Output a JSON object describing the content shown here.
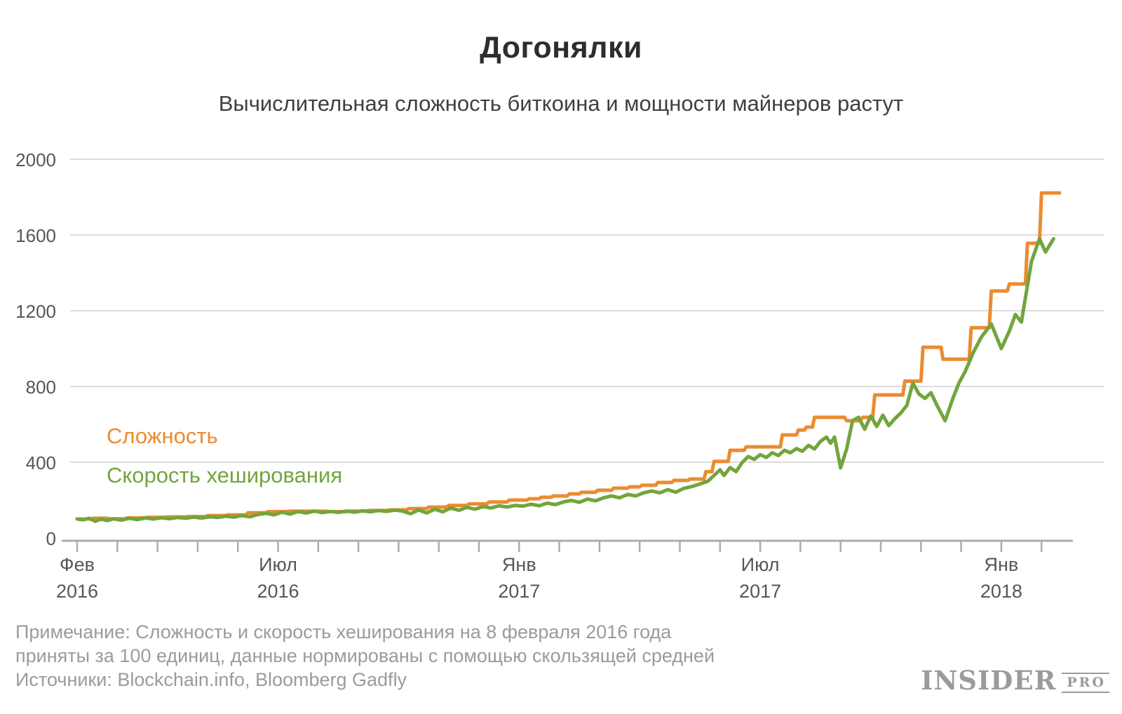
{
  "title": "Догонялки",
  "subtitle": "Вычислительная сложность биткоина и мощности майнеров растут",
  "legend": {
    "difficulty": "Сложность",
    "hashrate": "Скорость хеширования"
  },
  "colors": {
    "difficulty": "#EC8B2F",
    "hashrate": "#72A53D",
    "grid": "#dcdcdc",
    "axis_line": "#acacaf",
    "tick_label": "#54575a",
    "footnote": "#9b9b9b",
    "logo": "#9b9b9b"
  },
  "footnote": {
    "line1": "Примечание: Сложность и скорость хеширования на 8 февраля 2016 года",
    "line2": "приняты за 100 единиц, данные нормированы с помощью скользящей средней",
    "line3": "Источники: Blockchain.info, Bloomberg Gadfly"
  },
  "logo": {
    "main": "INSIDER",
    "sub": "PRO"
  },
  "chart_data": {
    "type": "line",
    "title": "Догонялки",
    "subtitle": "Вычислительная сложность биткоина и мощности майнеров растут",
    "x_unit": "months since Feb 2016",
    "xlim": [
      0,
      24.5
    ],
    "ylim": [
      0,
      2000
    ],
    "grid": "horizontal",
    "y_ticks": [
      0,
      400,
      800,
      1200,
      1600,
      2000
    ],
    "x_minor_tick_months": [
      0,
      1,
      2,
      3,
      4,
      5,
      6,
      7,
      8,
      9,
      10,
      11,
      12,
      13,
      14,
      15,
      16,
      17,
      18,
      19,
      20,
      21,
      22,
      23,
      24
    ],
    "x_labels": [
      {
        "month": "Фев",
        "year": "2016",
        "m": 0
      },
      {
        "month": "Июл",
        "year": "2016",
        "m": 5
      },
      {
        "month": "Янв",
        "year": "2017",
        "m": 11
      },
      {
        "month": "Июл",
        "year": "2017",
        "m": 17
      },
      {
        "month": "Янв",
        "year": "2018",
        "m": 23
      }
    ],
    "legend_position": "inside-left",
    "series": [
      {
        "name": "Сложность",
        "color": "#EC8B2F",
        "style": "step",
        "points": [
          [
            0,
            100
          ],
          [
            0.35,
            100
          ],
          [
            0.4,
            104
          ],
          [
            0.75,
            104
          ],
          [
            0.8,
            101
          ],
          [
            1.2,
            101
          ],
          [
            1.25,
            106
          ],
          [
            1.7,
            106
          ],
          [
            1.75,
            109
          ],
          [
            2.2,
            109
          ],
          [
            2.25,
            111
          ],
          [
            2.7,
            111
          ],
          [
            2.75,
            113
          ],
          [
            3.2,
            113
          ],
          [
            3.25,
            118
          ],
          [
            3.7,
            118
          ],
          [
            3.75,
            122
          ],
          [
            4.2,
            122
          ],
          [
            4.25,
            133
          ],
          [
            4.7,
            133
          ],
          [
            4.75,
            139
          ],
          [
            5.2,
            139
          ],
          [
            5.25,
            141
          ],
          [
            6.2,
            141
          ],
          [
            6.25,
            139
          ],
          [
            6.7,
            139
          ],
          [
            6.75,
            142
          ],
          [
            7.2,
            142
          ],
          [
            7.25,
            145
          ],
          [
            7.7,
            145
          ],
          [
            7.75,
            148
          ],
          [
            8.2,
            148
          ],
          [
            8.25,
            155
          ],
          [
            8.7,
            155
          ],
          [
            8.75,
            163
          ],
          [
            9.2,
            163
          ],
          [
            9.25,
            172
          ],
          [
            9.7,
            172
          ],
          [
            9.75,
            180
          ],
          [
            10.2,
            180
          ],
          [
            10.25,
            190
          ],
          [
            10.7,
            190
          ],
          [
            10.75,
            200
          ],
          [
            11.2,
            200
          ],
          [
            11.25,
            207
          ],
          [
            11.5,
            207
          ],
          [
            11.55,
            215
          ],
          [
            11.8,
            215
          ],
          [
            11.85,
            222
          ],
          [
            12.2,
            222
          ],
          [
            12.25,
            233
          ],
          [
            12.5,
            233
          ],
          [
            12.55,
            241
          ],
          [
            12.9,
            241
          ],
          [
            12.95,
            252
          ],
          [
            13.3,
            252
          ],
          [
            13.35,
            263
          ],
          [
            13.7,
            263
          ],
          [
            13.75,
            270
          ],
          [
            14.0,
            270
          ],
          [
            14.05,
            278
          ],
          [
            14.4,
            278
          ],
          [
            14.45,
            293
          ],
          [
            14.8,
            293
          ],
          [
            14.85,
            304
          ],
          [
            15.2,
            304
          ],
          [
            15.25,
            311
          ],
          [
            15.6,
            311
          ],
          [
            15.65,
            350
          ],
          [
            15.8,
            350
          ],
          [
            15.85,
            404
          ],
          [
            16.2,
            404
          ],
          [
            16.25,
            463
          ],
          [
            16.6,
            463
          ],
          [
            16.65,
            481
          ],
          [
            17.5,
            481
          ],
          [
            17.55,
            544
          ],
          [
            17.9,
            544
          ],
          [
            17.95,
            570
          ],
          [
            18.1,
            570
          ],
          [
            18.15,
            585
          ],
          [
            18.3,
            585
          ],
          [
            18.35,
            637
          ],
          [
            19.1,
            637
          ],
          [
            19.15,
            619
          ],
          [
            19.5,
            619
          ],
          [
            19.55,
            637
          ],
          [
            19.8,
            637
          ],
          [
            19.85,
            755
          ],
          [
            20.55,
            755
          ],
          [
            20.6,
            828
          ],
          [
            21.0,
            828
          ],
          [
            21.05,
            1007
          ],
          [
            21.5,
            1007
          ],
          [
            21.55,
            944
          ],
          [
            22.2,
            944
          ],
          [
            22.25,
            1110
          ],
          [
            22.7,
            1110
          ],
          [
            22.75,
            1304
          ],
          [
            23.15,
            1304
          ],
          [
            23.2,
            1341
          ],
          [
            23.6,
            1341
          ],
          [
            23.65,
            1556
          ],
          [
            23.95,
            1556
          ],
          [
            24.0,
            1822
          ],
          [
            24.45,
            1822
          ]
        ]
      },
      {
        "name": "Скорость хеширования",
        "color": "#72A53D",
        "style": "line",
        "points": [
          [
            0,
            100
          ],
          [
            0.15,
            96
          ],
          [
            0.3,
            104
          ],
          [
            0.45,
            88
          ],
          [
            0.6,
            100
          ],
          [
            0.75,
            92
          ],
          [
            0.9,
            101
          ],
          [
            1.1,
            94
          ],
          [
            1.3,
            104
          ],
          [
            1.5,
            97
          ],
          [
            1.7,
            106
          ],
          [
            1.9,
            100
          ],
          [
            2.1,
            107
          ],
          [
            2.3,
            102
          ],
          [
            2.5,
            108
          ],
          [
            2.7,
            104
          ],
          [
            2.9,
            110
          ],
          [
            3.1,
            105
          ],
          [
            3.3,
            112
          ],
          [
            3.5,
            108
          ],
          [
            3.7,
            115
          ],
          [
            3.9,
            110
          ],
          [
            4.1,
            118
          ],
          [
            4.3,
            112
          ],
          [
            4.5,
            124
          ],
          [
            4.7,
            130
          ],
          [
            4.9,
            122
          ],
          [
            5.1,
            136
          ],
          [
            5.3,
            126
          ],
          [
            5.5,
            140
          ],
          [
            5.7,
            132
          ],
          [
            5.9,
            142
          ],
          [
            6.1,
            134
          ],
          [
            6.3,
            140
          ],
          [
            6.5,
            135
          ],
          [
            6.7,
            142
          ],
          [
            6.9,
            136
          ],
          [
            7.1,
            143
          ],
          [
            7.3,
            138
          ],
          [
            7.5,
            145
          ],
          [
            7.7,
            140
          ],
          [
            7.9,
            147
          ],
          [
            8.1,
            142
          ],
          [
            8.3,
            128
          ],
          [
            8.5,
            148
          ],
          [
            8.7,
            132
          ],
          [
            8.9,
            152
          ],
          [
            9.1,
            138
          ],
          [
            9.3,
            158
          ],
          [
            9.5,
            146
          ],
          [
            9.7,
            162
          ],
          [
            9.9,
            152
          ],
          [
            10.1,
            166
          ],
          [
            10.3,
            158
          ],
          [
            10.5,
            170
          ],
          [
            10.7,
            163
          ],
          [
            10.9,
            172
          ],
          [
            11.1,
            168
          ],
          [
            11.3,
            178
          ],
          [
            11.5,
            170
          ],
          [
            11.7,
            184
          ],
          [
            11.9,
            176
          ],
          [
            12.1,
            190
          ],
          [
            12.3,
            198
          ],
          [
            12.5,
            188
          ],
          [
            12.7,
            205
          ],
          [
            12.9,
            196
          ],
          [
            13.1,
            212
          ],
          [
            13.3,
            222
          ],
          [
            13.5,
            212
          ],
          [
            13.7,
            230
          ],
          [
            13.9,
            222
          ],
          [
            14.1,
            238
          ],
          [
            14.3,
            248
          ],
          [
            14.5,
            238
          ],
          [
            14.7,
            255
          ],
          [
            14.9,
            242
          ],
          [
            15.1,
            262
          ],
          [
            15.3,
            272
          ],
          [
            15.5,
            285
          ],
          [
            15.7,
            300
          ],
          [
            15.9,
            340
          ],
          [
            16.0,
            360
          ],
          [
            16.1,
            330
          ],
          [
            16.25,
            372
          ],
          [
            16.4,
            350
          ],
          [
            16.55,
            398
          ],
          [
            16.7,
            430
          ],
          [
            16.85,
            415
          ],
          [
            17.0,
            440
          ],
          [
            17.15,
            425
          ],
          [
            17.3,
            450
          ],
          [
            17.45,
            435
          ],
          [
            17.6,
            463
          ],
          [
            17.75,
            450
          ],
          [
            17.9,
            472
          ],
          [
            18.05,
            458
          ],
          [
            18.2,
            489
          ],
          [
            18.35,
            470
          ],
          [
            18.5,
            510
          ],
          [
            18.65,
            533
          ],
          [
            18.75,
            500
          ],
          [
            18.85,
            533
          ],
          [
            19.0,
            370
          ],
          [
            19.15,
            470
          ],
          [
            19.3,
            620
          ],
          [
            19.45,
            637
          ],
          [
            19.6,
            574
          ],
          [
            19.75,
            644
          ],
          [
            19.9,
            589
          ],
          [
            20.05,
            648
          ],
          [
            20.2,
            593
          ],
          [
            20.35,
            630
          ],
          [
            20.5,
            660
          ],
          [
            20.65,
            700
          ],
          [
            20.8,
            818
          ],
          [
            20.95,
            760
          ],
          [
            21.1,
            737
          ],
          [
            21.25,
            767
          ],
          [
            21.4,
            700
          ],
          [
            21.6,
            619
          ],
          [
            21.8,
            740
          ],
          [
            21.95,
            820
          ],
          [
            22.1,
            878
          ],
          [
            22.3,
            978
          ],
          [
            22.5,
            1060
          ],
          [
            22.75,
            1130
          ],
          [
            23.0,
            1000
          ],
          [
            23.2,
            1093
          ],
          [
            23.35,
            1180
          ],
          [
            23.5,
            1140
          ],
          [
            23.75,
            1460
          ],
          [
            23.95,
            1580
          ],
          [
            24.1,
            1510
          ],
          [
            24.3,
            1580
          ]
        ]
      }
    ]
  }
}
